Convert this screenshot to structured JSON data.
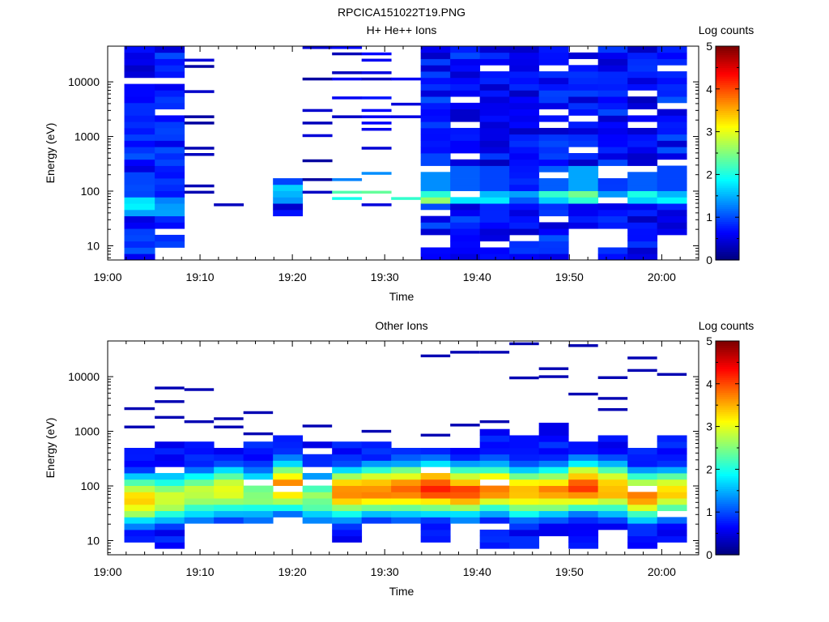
{
  "figure_title": "RPCICA151022T19.PNG",
  "chart_data": [
    {
      "type": "heatmap",
      "title": "H+ He++ Ions",
      "xlabel": "Time",
      "ylabel": "Energy (eV)",
      "colorbar_label": "Log counts",
      "colorbar_ticks": [
        "0",
        "1",
        "2",
        "3",
        "4",
        "5"
      ],
      "clim": [
        0,
        5
      ],
      "colormap": "jet",
      "xticks": [
        "19:00",
        "19:10",
        "19:20",
        "19:30",
        "19:40",
        "19:50",
        "20:00"
      ],
      "xlim_minutes": [
        0,
        64
      ],
      "yscale": "log",
      "yticks": [
        "10",
        "100",
        "1000",
        "10000"
      ],
      "ylim": [
        5.5,
        45000
      ],
      "time_columns_minutes": [
        [
          1.8,
          5.1
        ],
        [
          5.1,
          8.3
        ],
        [
          8.3,
          11.5
        ],
        [
          11.5,
          14.7
        ],
        [
          14.7,
          17.9
        ],
        [
          17.9,
          21.1
        ],
        [
          21.1,
          24.3
        ],
        [
          24.3,
          27.5
        ],
        [
          27.5,
          30.7
        ],
        [
          30.7,
          33.9
        ],
        [
          33.9,
          37.1
        ],
        [
          37.1,
          40.3
        ],
        [
          40.3,
          43.5
        ],
        [
          43.5,
          46.7
        ],
        [
          46.7,
          49.9
        ],
        [
          49.9,
          53.1
        ],
        [
          53.1,
          56.3
        ],
        [
          56.3,
          59.5
        ],
        [
          59.5,
          62.7
        ]
      ],
      "columns": [
        {
          "emin": 6,
          "emax": 42000,
          "bg": 0.7,
          "band": [
            40,
            80,
            1.6
          ]
        },
        {
          "emin": 10,
          "emax": 42000,
          "bg": 0.7,
          "band": [
            35,
            70,
            1.2
          ]
        },
        {
          "emin": 50,
          "emax": 42000,
          "bg": 0.3,
          "sparse": 0.6
        },
        {
          "emin": 38,
          "emax": 170,
          "bg": 0.25,
          "sparse": 0.92
        },
        {
          "emin": 120,
          "emax": 250,
          "bg": 0.25,
          "sparse": 0.85
        },
        {
          "emin": 32,
          "emax": 190,
          "bg": 0.6,
          "band": [
            60,
            150,
            1.6
          ]
        },
        {
          "emin": 35,
          "emax": 42000,
          "bg": 0.3,
          "sparse": 0.88
        },
        {
          "emin": 25,
          "emax": 42000,
          "bg": 0.5,
          "sparse": 0.6,
          "band": [
            60,
            120,
            2.1
          ]
        },
        {
          "emin": 25,
          "emax": 42000,
          "bg": 0.5,
          "sparse": 0.6,
          "band": [
            60,
            120,
            2.2
          ]
        },
        {
          "emin": 25,
          "emax": 42000,
          "bg": 0.5,
          "sparse": 0.6,
          "band": [
            60,
            120,
            2.0
          ]
        },
        {
          "emin": 6,
          "emax": 42000,
          "bg": 0.7,
          "band": [
            60,
            110,
            2.2
          ]
        },
        {
          "emin": 6,
          "emax": 42000,
          "bg": 0.7,
          "band": [
            60,
            110,
            1.8
          ]
        },
        {
          "emin": 6,
          "emax": 42000,
          "bg": 0.6,
          "band": [
            60,
            110,
            1.6
          ]
        },
        {
          "emin": 6,
          "emax": 42000,
          "bg": 0.6,
          "band": [
            60,
            110,
            1.2
          ]
        },
        {
          "emin": 6,
          "emax": 42000,
          "bg": 0.7,
          "band": [
            60,
            110,
            1.8
          ]
        },
        {
          "emin": 20,
          "emax": 42000,
          "bg": 0.7,
          "band": [
            60,
            110,
            2.4
          ]
        },
        {
          "emin": 6,
          "emax": 42000,
          "bg": 0.7,
          "band": [
            60,
            110,
            1.5
          ]
        },
        {
          "emin": 6,
          "emax": 42000,
          "bg": 0.6,
          "band": [
            60,
            110,
            1.8
          ]
        },
        {
          "emin": 14,
          "emax": 42000,
          "bg": 0.7,
          "band": [
            60,
            110,
            1.6
          ]
        }
      ]
    },
    {
      "type": "heatmap",
      "title": "Other Ions",
      "xlabel": "Time",
      "ylabel": "Energy (eV)",
      "colorbar_label": "Log counts",
      "colorbar_ticks": [
        "0",
        "1",
        "2",
        "3",
        "4",
        "5"
      ],
      "clim": [
        0,
        5
      ],
      "colormap": "jet",
      "xticks": [
        "19:00",
        "19:10",
        "19:20",
        "19:30",
        "19:40",
        "19:50",
        "20:00"
      ],
      "xlim_minutes": [
        0,
        64
      ],
      "yscale": "log",
      "yticks": [
        "10",
        "100",
        "1000",
        "10000"
      ],
      "ylim": [
        5.5,
        45000
      ],
      "time_columns_minutes": [
        [
          1.8,
          5.1
        ],
        [
          5.1,
          8.3
        ],
        [
          8.3,
          11.5
        ],
        [
          11.5,
          14.7
        ],
        [
          14.7,
          17.9
        ],
        [
          17.9,
          21.1
        ],
        [
          21.1,
          24.3
        ],
        [
          24.3,
          27.5
        ],
        [
          27.5,
          30.7
        ],
        [
          30.7,
          33.9
        ],
        [
          33.9,
          37.1
        ],
        [
          37.1,
          40.3
        ],
        [
          40.3,
          43.5
        ],
        [
          43.5,
          46.7
        ],
        [
          46.7,
          49.9
        ],
        [
          49.9,
          53.1
        ],
        [
          53.1,
          56.3
        ],
        [
          56.3,
          59.5
        ],
        [
          59.5,
          62.7
        ]
      ],
      "columns": [
        {
          "emin": 10,
          "emax": 520,
          "peak": 3.2,
          "center": 55,
          "sparse_hi": [
            1200,
            2600
          ]
        },
        {
          "emin": 6.5,
          "emax": 600,
          "peak": 2.8,
          "center": 60,
          "sparse_hi": [
            1800,
            3500,
            6200
          ]
        },
        {
          "emin": 22,
          "emax": 580,
          "peak": 2.7,
          "center": 70,
          "sparse_hi": [
            1500,
            5800
          ]
        },
        {
          "emin": 22,
          "emax": 550,
          "peak": 2.9,
          "center": 80,
          "sparse_hi": [
            1200,
            1700
          ]
        },
        {
          "emin": 22,
          "emax": 600,
          "peak": 2.5,
          "center": 70,
          "sparse_hi": [
            900,
            2200
          ]
        },
        {
          "emin": 28,
          "emax": 780,
          "peak": 3.6,
          "center": 100,
          "sparse_hi": []
        },
        {
          "emin": 22,
          "emax": 650,
          "peak": 2.4,
          "center": 60,
          "sparse_hi": [
            1250
          ]
        },
        {
          "emin": 10,
          "emax": 700,
          "peak": 3.6,
          "center": 75,
          "sparse_hi": []
        },
        {
          "emin": 22,
          "emax": 650,
          "peak": 3.6,
          "center": 85,
          "sparse_hi": [
            1000
          ]
        },
        {
          "emin": 22,
          "emax": 500,
          "peak": 3.7,
          "center": 90,
          "sparse_hi": []
        },
        {
          "emin": 10,
          "emax": 470,
          "peak": 4.0,
          "center": 90,
          "sparse_hi": [
            850,
            24000
          ]
        },
        {
          "emin": 22,
          "emax": 480,
          "peak": 3.8,
          "center": 80,
          "sparse_hi": [
            1300,
            28000
          ]
        },
        {
          "emin": 6.5,
          "emax": 1000,
          "peak": 3.6,
          "center": 90,
          "sparse_hi": [
            1500,
            28000
          ]
        },
        {
          "emin": 8,
          "emax": 750,
          "peak": 3.4,
          "center": 75,
          "sparse_hi": [
            9500,
            40000
          ]
        },
        {
          "emin": 11,
          "emax": 1300,
          "peak": 3.5,
          "center": 80,
          "sparse_hi": [
            10000,
            14000
          ]
        },
        {
          "emin": 6.5,
          "emax": 580,
          "peak": 3.9,
          "center": 100,
          "sparse_hi": [
            4800,
            37000
          ]
        },
        {
          "emin": 16,
          "emax": 900,
          "peak": 3.4,
          "center": 90,
          "sparse_hi": [
            2500,
            4000,
            9600
          ]
        },
        {
          "emin": 6.5,
          "emax": 480,
          "peak": 3.5,
          "center": 65,
          "sparse_hi": [
            13000,
            22000
          ]
        },
        {
          "emin": 9,
          "emax": 800,
          "peak": 3.1,
          "center": 75,
          "sparse_hi": [
            11000
          ]
        }
      ]
    }
  ]
}
